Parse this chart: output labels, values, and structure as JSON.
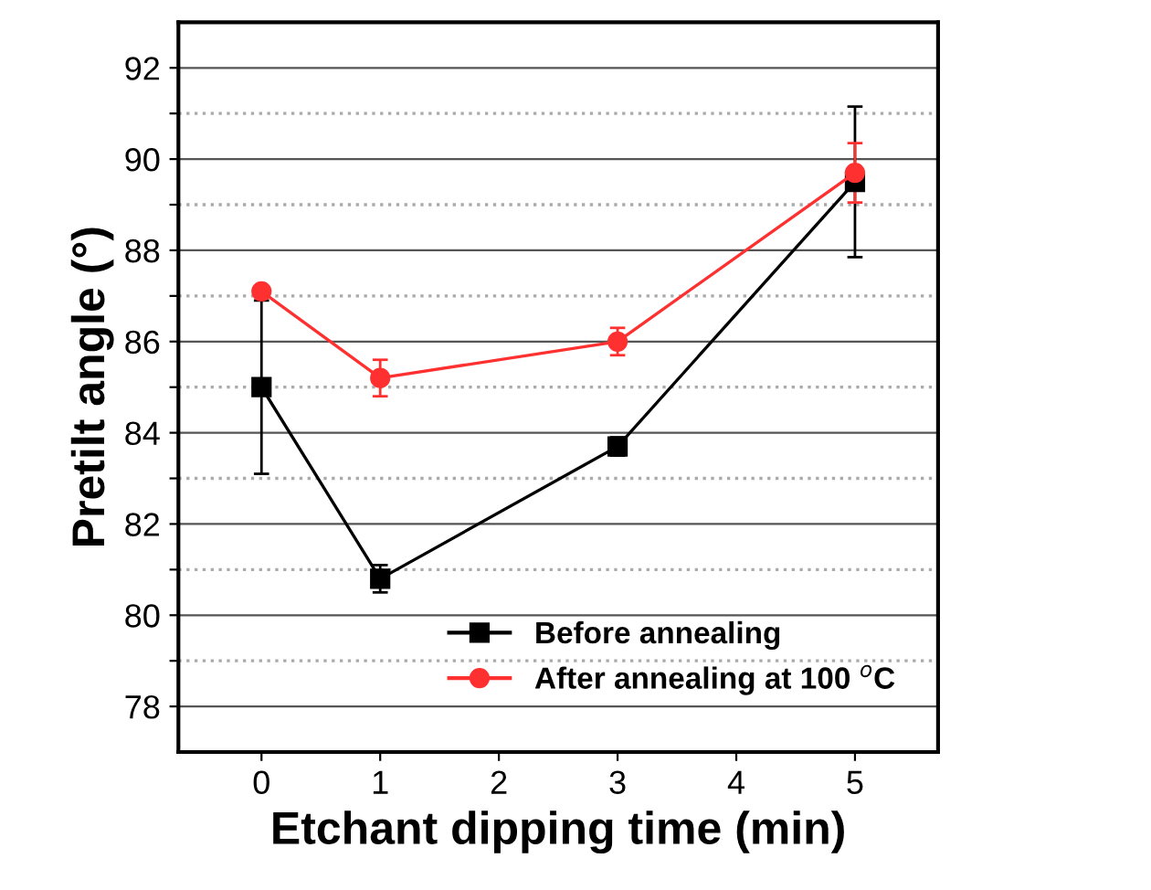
{
  "chart_data": {
    "type": "line",
    "xlabel": "Etchant dipping time (min)",
    "ylabel": "Pretilt angle (°)",
    "xlim": [
      -0.7,
      5.7
    ],
    "xticks": [
      0,
      1,
      2,
      3,
      4,
      5
    ],
    "ylim": [
      77,
      93
    ],
    "yticks": [
      78,
      {
        "value": 79,
        "label": null
      },
      80,
      {
        "value": 81,
        "label": null
      },
      82,
      {
        "value": 83,
        "label": null
      },
      84,
      {
        "value": 85,
        "label": null
      },
      86,
      {
        "value": 87,
        "label": null
      },
      88,
      {
        "value": 89,
        "label": null
      },
      90,
      {
        "value": 91,
        "label": null
      },
      92
    ],
    "grid": "y",
    "legend": "bottom right",
    "line_style": "solid",
    "series": [
      {
        "name": "Before annealing",
        "color": "#000000",
        "marker": "square",
        "x": [
          0,
          1,
          3,
          5
        ],
        "values": [
          85.0,
          80.8,
          83.7,
          89.5
        ],
        "errors": [
          1.9,
          0.3,
          0.2,
          1.65
        ]
      },
      {
        "name": "After annealing at 100 $^{o}$C",
        "color": "#ff3030",
        "marker": "circle",
        "x": [
          0,
          1,
          3,
          5
        ],
        "values": [
          87.1,
          85.2,
          86.0,
          89.7
        ],
        "errors": [
          0.1,
          0.4,
          0.3,
          0.65
        ]
      }
    ]
  }
}
